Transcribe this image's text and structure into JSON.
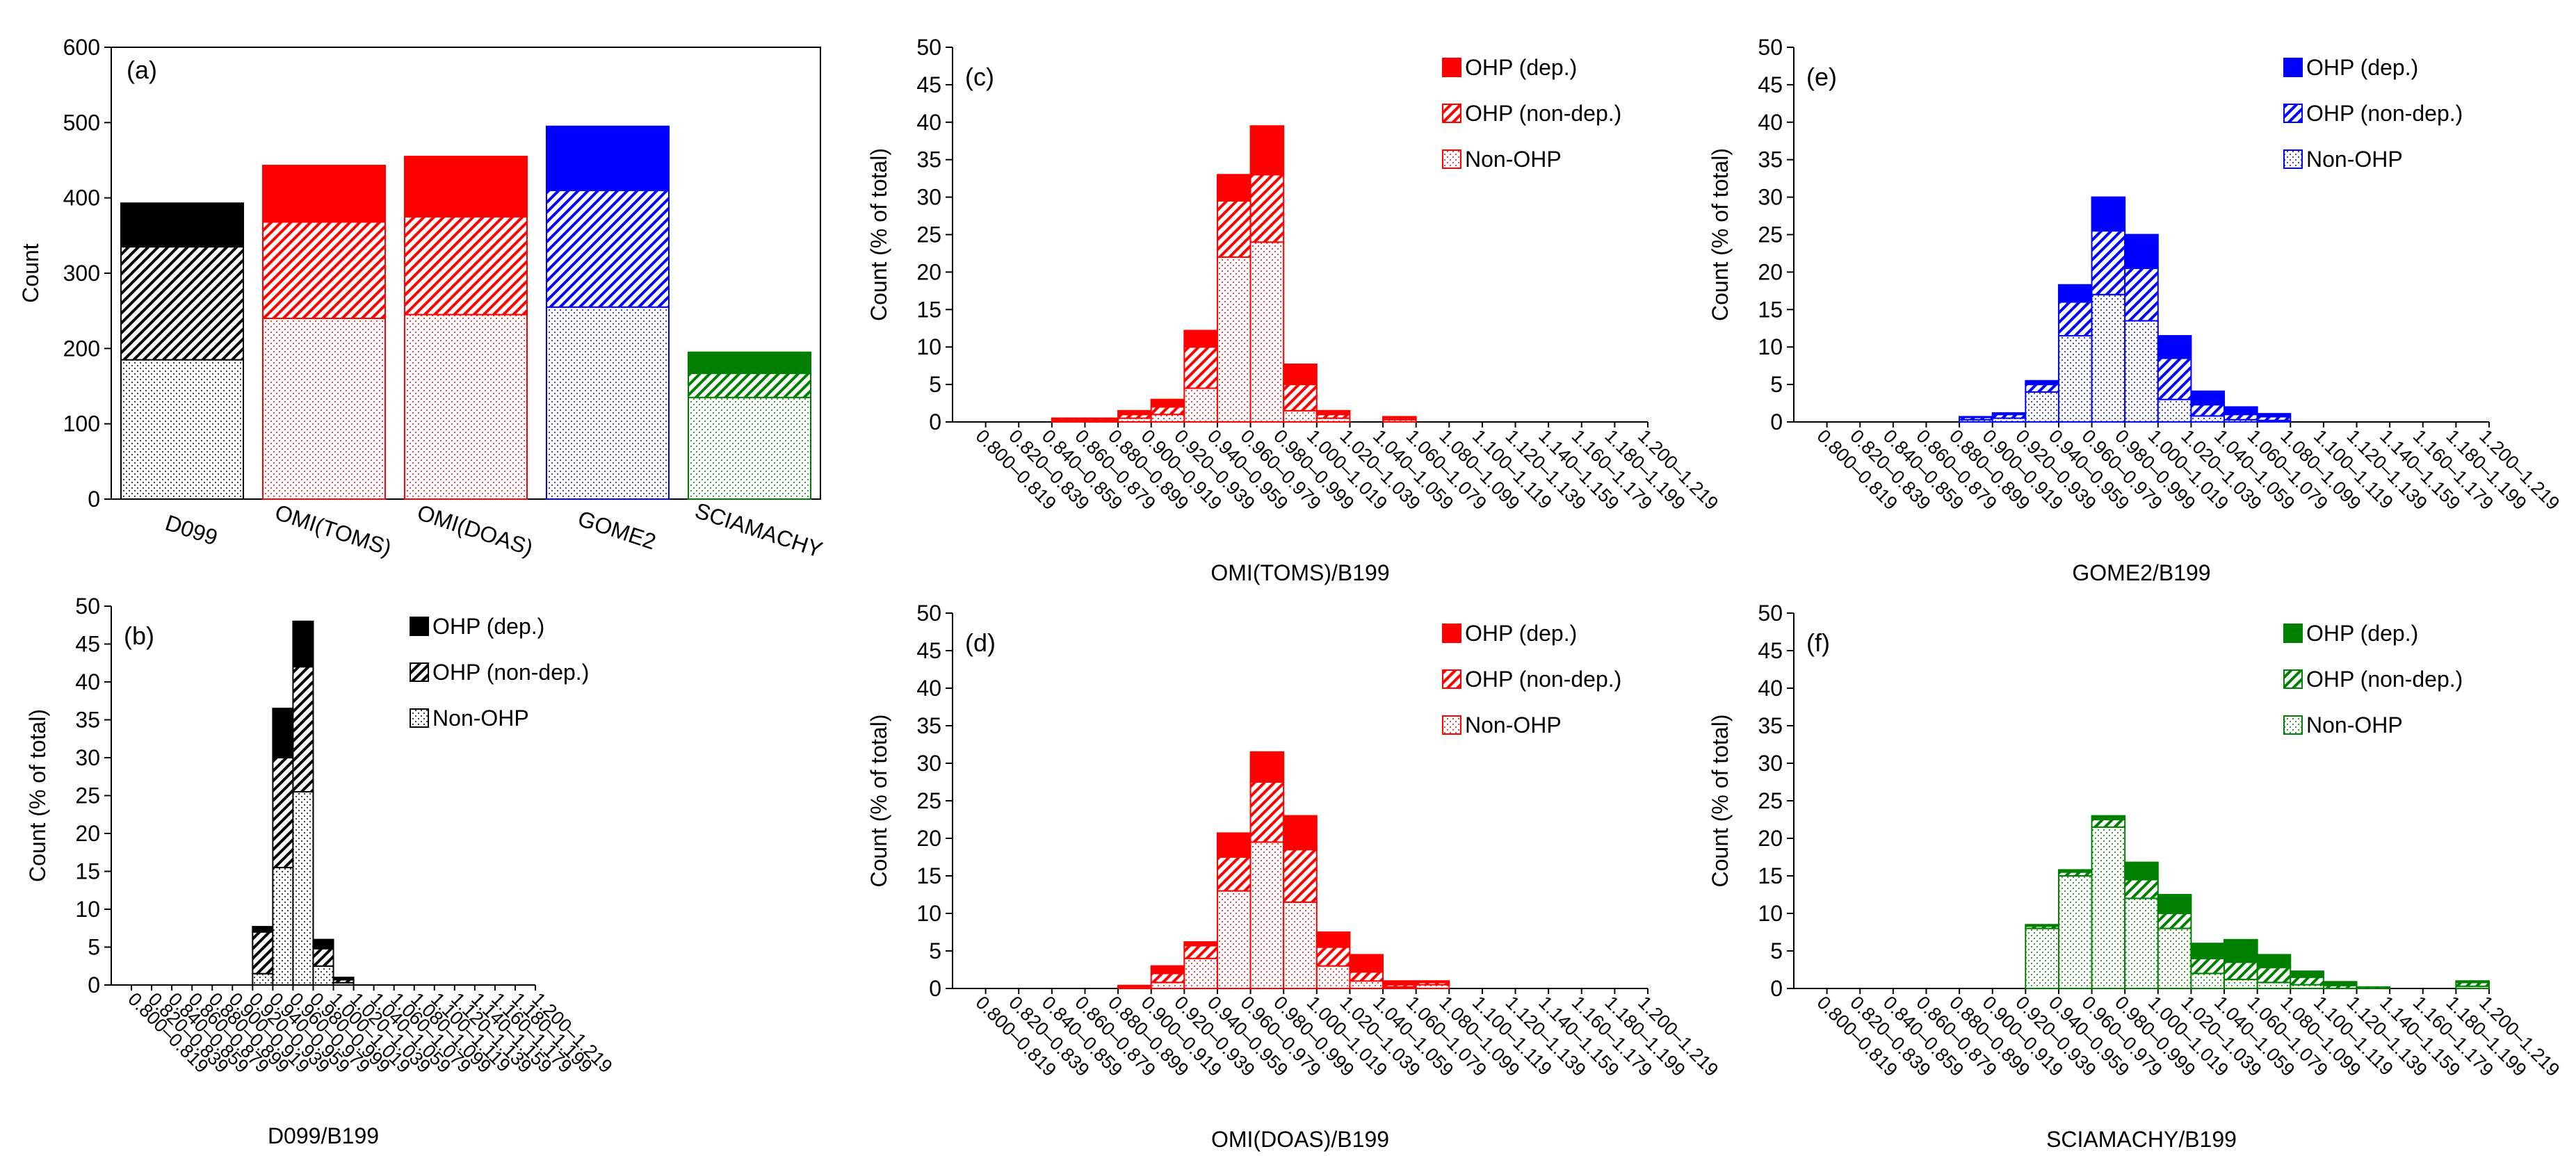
{
  "colors": {
    "black": "#000000",
    "red": "#ff0000",
    "blue": "#0000ff",
    "green": "#008000"
  },
  "legend_labels": [
    "OHP (dep.)",
    "OHP (non-dep.)",
    "Non-OHP"
  ],
  "bins": [
    "0.800–0.819",
    "0.820–0.839",
    "0.840–0.859",
    "0.860–0.879",
    "0.880–0.899",
    "0.900–0.919",
    "0.920–0.939",
    "0.940–0.959",
    "0.960–0.979",
    "0.980–0.999",
    "1.000–1.019",
    "1.020–1.039",
    "1.040–1.059",
    "1.060–1.079",
    "1.080–1.099",
    "1.100–1.119",
    "1.120–1.139",
    "1.140–1.159",
    "1.160–1.179",
    "1.180–1.199",
    "1.200–1.219"
  ],
  "chart_data": [
    {
      "panel": "(a)",
      "type": "bar",
      "stacked": true,
      "ylabel": "Count",
      "ylim": [
        0,
        600
      ],
      "yticks": [
        0,
        100,
        200,
        300,
        400,
        500,
        600
      ],
      "categories": [
        "D099",
        "OMI(TOMS)",
        "OMI(DOAS)",
        "GOME2",
        "SCIAMACHY"
      ],
      "category_colors": [
        "black",
        "red",
        "red",
        "blue",
        "green"
      ],
      "series": [
        {
          "name": "Non-OHP",
          "values": [
            185,
            240,
            245,
            255,
            135
          ]
        },
        {
          "name": "OHP (non-dep.)",
          "values": [
            150,
            128,
            130,
            155,
            32
          ]
        },
        {
          "name": "OHP (dep.)",
          "values": [
            58,
            75,
            80,
            85,
            28
          ]
        }
      ]
    },
    {
      "panel": "(b)",
      "type": "bar",
      "stacked": true,
      "color": "black",
      "xlabel": "D099/B199",
      "ylabel": "Count  (% of total)",
      "ylim": [
        0,
        50
      ],
      "series": [
        {
          "name": "Non-OHP",
          "values": [
            0,
            0,
            0,
            0,
            0,
            0,
            0,
            1.5,
            15.5,
            25.5,
            2.5,
            0.3,
            0,
            0,
            0,
            0,
            0,
            0,
            0,
            0,
            0
          ]
        },
        {
          "name": "OHP (non-dep.)",
          "values": [
            0,
            0,
            0,
            0,
            0,
            0,
            0,
            5.5,
            14.5,
            16.5,
            2.3,
            0.4,
            0,
            0,
            0,
            0,
            0,
            0,
            0,
            0,
            0
          ]
        },
        {
          "name": "OHP (dep.)",
          "values": [
            0,
            0,
            0,
            0,
            0,
            0,
            0,
            0.7,
            6.5,
            6,
            1.2,
            0.3,
            0,
            0,
            0,
            0,
            0,
            0,
            0,
            0,
            0
          ]
        }
      ]
    },
    {
      "panel": "(c)",
      "type": "bar",
      "stacked": true,
      "color": "red",
      "xlabel": "OMI(TOMS)/B199",
      "ylabel": "Count  (% of total)",
      "ylim": [
        0,
        50
      ],
      "series": [
        {
          "name": "Non-OHP",
          "values": [
            0,
            0,
            0,
            0.2,
            0.2,
            0.5,
            1,
            4.5,
            22,
            24,
            1.5,
            0.5,
            0,
            0.3,
            0,
            0,
            0,
            0,
            0,
            0,
            0
          ]
        },
        {
          "name": "OHP (non-dep.)",
          "values": [
            0,
            0,
            0,
            0.2,
            0.2,
            0.5,
            1,
            5.5,
            7.5,
            9,
            3.5,
            0.5,
            0,
            0.2,
            0,
            0,
            0,
            0,
            0,
            0,
            0
          ]
        },
        {
          "name": "OHP (dep.)",
          "values": [
            0,
            0,
            0,
            0.1,
            0.1,
            0.5,
            1,
            2.2,
            3.5,
            6.5,
            2.7,
            0.5,
            0,
            0.2,
            0,
            0,
            0,
            0,
            0,
            0,
            0
          ]
        }
      ]
    },
    {
      "panel": "(d)",
      "type": "bar",
      "stacked": true,
      "color": "red",
      "xlabel": "OMI(DOAS)/B199",
      "ylabel": "Count  (% of total)",
      "ylim": [
        0,
        50
      ],
      "series": [
        {
          "name": "Non-OHP",
          "values": [
            0,
            0,
            0,
            0,
            0,
            0.2,
            0.8,
            4,
            13,
            19.5,
            11.5,
            3,
            1,
            0.2,
            0.5,
            0,
            0,
            0,
            0,
            0,
            0
          ]
        },
        {
          "name": "OHP (non-dep.)",
          "values": [
            0,
            0,
            0,
            0,
            0,
            0.1,
            1.2,
            1.7,
            4.5,
            8,
            7,
            2.5,
            1.2,
            0.3,
            0.3,
            0,
            0,
            0,
            0,
            0,
            0
          ]
        },
        {
          "name": "OHP (dep.)",
          "values": [
            0,
            0,
            0,
            0,
            0,
            0.1,
            1,
            0.5,
            3.2,
            4,
            4.5,
            2,
            2.3,
            0.5,
            0.2,
            0,
            0,
            0,
            0,
            0,
            0
          ]
        }
      ]
    },
    {
      "panel": "(e)",
      "type": "bar",
      "stacked": true,
      "color": "blue",
      "xlabel": "GOME2/B199",
      "ylabel": "Count  (% of total)",
      "ylim": [
        0,
        50
      ],
      "series": [
        {
          "name": "Non-OHP",
          "values": [
            0,
            0,
            0,
            0,
            0,
            0.3,
            0.5,
            4,
            11.5,
            17,
            13.5,
            3,
            0.8,
            0.3,
            0.2,
            0,
            0,
            0,
            0,
            0,
            0
          ]
        },
        {
          "name": "OHP (non-dep.)",
          "values": [
            0,
            0,
            0,
            0,
            0,
            0.3,
            0.5,
            1,
            4.5,
            8.5,
            7,
            5.5,
            1.5,
            0.7,
            0.5,
            0,
            0,
            0,
            0,
            0,
            0
          ]
        },
        {
          "name": "OHP (dep.)",
          "values": [
            0,
            0,
            0,
            0,
            0,
            0.1,
            0.2,
            0.5,
            2.3,
            4.5,
            4.5,
            3,
            1.8,
            1,
            0.4,
            0,
            0,
            0,
            0,
            0,
            0
          ]
        }
      ]
    },
    {
      "panel": "(f)",
      "type": "bar",
      "stacked": true,
      "color": "green",
      "xlabel": "SCIAMACHY/B199",
      "ylabel": "Count  (% of total)",
      "ylim": [
        0,
        50
      ],
      "series": [
        {
          "name": "Non-OHP",
          "values": [
            0,
            0,
            0,
            0,
            0,
            0,
            0,
            8,
            15,
            21.5,
            12,
            8,
            2,
            1.2,
            0.8,
            0.5,
            0,
            0,
            0,
            0,
            0.3
          ]
        },
        {
          "name": "OHP (non-dep.)",
          "values": [
            0,
            0,
            0,
            0,
            0,
            0,
            0,
            0.3,
            0.5,
            1,
            2.5,
            2,
            2,
            2.3,
            2,
            1,
            0.4,
            0.2,
            0,
            0,
            0.5
          ]
        },
        {
          "name": "OHP (dep.)",
          "values": [
            0,
            0,
            0,
            0,
            0,
            0,
            0,
            0.2,
            0.3,
            0.5,
            2.3,
            2.5,
            2,
            3,
            1.7,
            0.8,
            0.5,
            0,
            0,
            0,
            0.2
          ]
        }
      ]
    }
  ]
}
